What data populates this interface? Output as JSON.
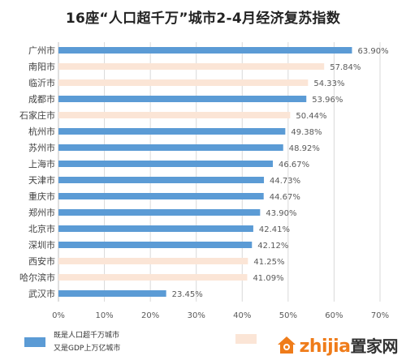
{
  "chart_data": {
    "type": "bar",
    "orientation": "horizontal",
    "title": "16座“人口超千万”城市2-4月经济复苏指数",
    "categories": [
      "广州市",
      "南阳市",
      "临沂市",
      "成都市",
      "石家庄市",
      "杭州市",
      "苏州市",
      "上海市",
      "天津市",
      "重庆市",
      "郑州市",
      "北京市",
      "深圳市",
      "西安市",
      "哈尔滨市",
      "武汉市"
    ],
    "values": [
      63.9,
      57.84,
      54.33,
      53.96,
      50.44,
      49.38,
      48.92,
      46.67,
      44.73,
      44.67,
      43.9,
      42.41,
      42.12,
      41.25,
      41.09,
      23.45
    ],
    "value_labels": [
      "63.90%",
      "57.84%",
      "54.33%",
      "53.96%",
      "50.44%",
      "49.38%",
      "48.92%",
      "46.67%",
      "44.73%",
      "44.67%",
      "43.90%",
      "42.41%",
      "42.12%",
      "41.25%",
      "41.09%",
      "23.45%"
    ],
    "bar_group": [
      "blue",
      "peach",
      "peach",
      "blue",
      "peach",
      "blue",
      "blue",
      "blue",
      "blue",
      "blue",
      "blue",
      "blue",
      "blue",
      "peach",
      "peach",
      "blue"
    ],
    "xlim": [
      0,
      70
    ],
    "xticks": [
      0,
      10,
      20,
      30,
      40,
      50,
      60,
      70
    ],
    "xtick_labels": [
      "0%",
      "10%",
      "20%",
      "30%",
      "40%",
      "50%",
      "60%",
      "70%"
    ],
    "grid": "vertical",
    "legend_position": "bottom",
    "colors": {
      "blue": "#5b9bd5",
      "peach": "#fbe5d6",
      "grid": "#d9d9d9",
      "axis": "#bfbfbf"
    }
  },
  "legend": {
    "blue_line1": "既是人口超千万城市",
    "blue_line2": "又是GDP上万亿城市",
    "peach_line1": ""
  },
  "watermark": {
    "latin": "zhijia",
    "cn": "置家网",
    "icon": "logo-icon"
  }
}
